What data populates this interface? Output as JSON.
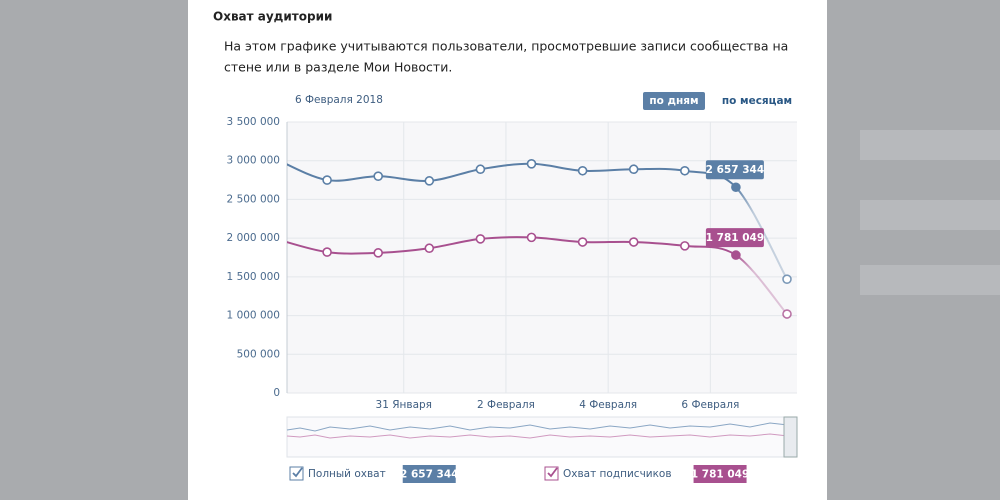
{
  "modal": {
    "title": "Охват аудитории",
    "description": [
      "На этом графике учитываются пользователи, просмотревшие записи сообщества на",
      "стене или в разделе Мои Новости."
    ],
    "date": "6 Февраля 2018",
    "buttons": [
      "по дням",
      "по месяцам"
    ]
  },
  "chart_data": {
    "type": "line",
    "categories": [
      null,
      null,
      null,
      "31 Января",
      null,
      "2 Февраля",
      null,
      "4 Февраля",
      null,
      "6 Февраля",
      null
    ],
    "series": [
      {
        "name": "Полный охват",
        "color": "#5b7fa6",
        "values": [
          3020000,
          2750000,
          2800000,
          2740000,
          2890000,
          2960000,
          2870000,
          2890000,
          2870000,
          2657344,
          1470000
        ],
        "value_labels": [
          null,
          null,
          null,
          null,
          null,
          null,
          null,
          null,
          null,
          "2 657 344",
          null
        ]
      },
      {
        "name": "Охват подписчиков",
        "color": "#a8508f",
        "values": [
          1990000,
          1820000,
          1810000,
          1870000,
          1990000,
          2010000,
          1950000,
          1950000,
          1900000,
          1781049,
          1020000
        ],
        "value_labels": [
          null,
          null,
          null,
          null,
          null,
          null,
          null,
          null,
          null,
          "1 781 049",
          null
        ]
      }
    ],
    "ylim": [
      0,
      3500000
    ],
    "yticks": [
      0,
      {
        "value": 500000,
        "label": "500 000"
      },
      {
        "value": 1000000,
        "label": "1 000 000"
      },
      {
        "value": 1500000,
        "label": "1 500 000"
      },
      {
        "value": 2000000,
        "label": "2 000 000"
      },
      {
        "value": 2500000,
        "label": "2 500 000"
      },
      {
        "value": 3000000,
        "label": "3 000 000"
      },
      {
        "value": 3500000,
        "label": "3 500 000"
      }
    ],
    "grid": true
  }
}
